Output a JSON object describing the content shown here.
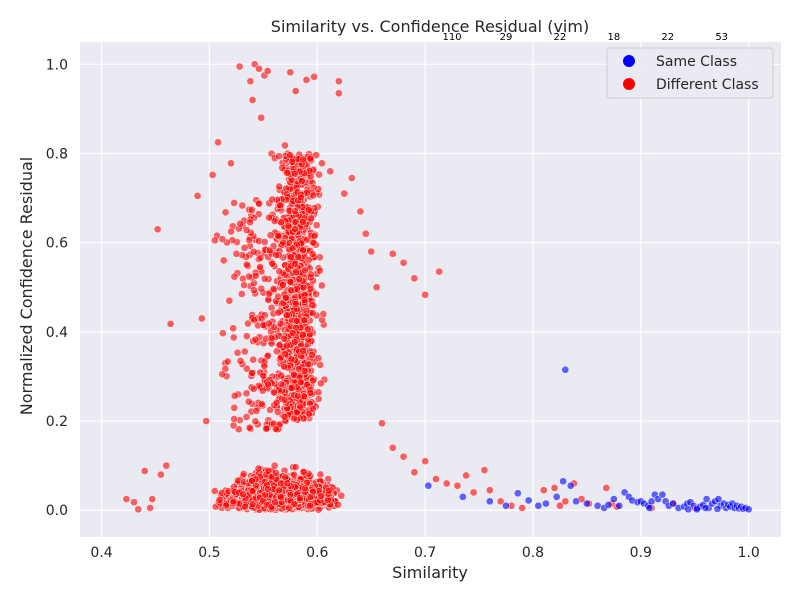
{
  "chart_data": {
    "type": "scatter",
    "title": "Similarity vs. Confidence Residual (vim)",
    "xlabel": "Similarity",
    "ylabel": "Normalized Confidence Residual",
    "xlim": [
      0.38,
      1.03
    ],
    "ylim": [
      -0.06,
      1.05
    ],
    "xticks": [
      "0.4",
      "0.5",
      "0.6",
      "0.7",
      "0.8",
      "0.9",
      "1.0"
    ],
    "yticks": [
      "0.0",
      "0.2",
      "0.4",
      "0.6",
      "0.8",
      "1.0"
    ],
    "grid": true,
    "legend_position": "top-right",
    "bin_counts": [
      {
        "x": 0.725,
        "label": "110"
      },
      {
        "x": 0.775,
        "label": "29"
      },
      {
        "x": 0.825,
        "label": "22"
      },
      {
        "x": 0.875,
        "label": "18"
      },
      {
        "x": 0.925,
        "label": "22"
      },
      {
        "x": 0.975,
        "label": "53"
      }
    ],
    "series": [
      {
        "name": "Same Class",
        "color": "#0000ff",
        "points": [
          [
            0.703,
            0.055
          ],
          [
            0.735,
            0.03
          ],
          [
            0.76,
            0.02
          ],
          [
            0.775,
            0.01
          ],
          [
            0.786,
            0.038
          ],
          [
            0.796,
            0.022
          ],
          [
            0.805,
            0.01
          ],
          [
            0.812,
            0.015
          ],
          [
            0.822,
            0.03
          ],
          [
            0.828,
            0.065
          ],
          [
            0.83,
            0.315
          ],
          [
            0.835,
            0.055
          ],
          [
            0.84,
            0.02
          ],
          [
            0.85,
            0.015
          ],
          [
            0.86,
            0.01
          ],
          [
            0.866,
            0.005
          ],
          [
            0.87,
            0.012
          ],
          [
            0.875,
            0.025
          ],
          [
            0.88,
            0.01
          ],
          [
            0.885,
            0.04
          ],
          [
            0.889,
            0.03
          ],
          [
            0.892,
            0.022
          ],
          [
            0.897,
            0.018
          ],
          [
            0.9,
            0.02
          ],
          [
            0.903,
            0.015
          ],
          [
            0.907,
            0.01
          ],
          [
            0.91,
            0.02
          ],
          [
            0.913,
            0.035
          ],
          [
            0.916,
            0.025
          ],
          [
            0.92,
            0.035
          ],
          [
            0.923,
            0.02
          ],
          [
            0.926,
            0.01
          ],
          [
            0.93,
            0.015
          ],
          [
            0.935,
            0.005
          ],
          [
            0.94,
            0.008
          ],
          [
            0.943,
            0.015
          ],
          [
            0.946,
            0.018
          ],
          [
            0.949,
            0.01
          ],
          [
            0.952,
            0.005
          ],
          [
            0.955,
            0.008
          ],
          [
            0.958,
            0.012
          ],
          [
            0.961,
            0.025
          ],
          [
            0.963,
            0.005
          ],
          [
            0.966,
            0.015
          ],
          [
            0.969,
            0.02
          ],
          [
            0.972,
            0.025
          ],
          [
            0.974,
            0.01
          ],
          [
            0.977,
            0.015
          ],
          [
            0.979,
            0.005
          ],
          [
            0.981,
            0.012
          ],
          [
            0.983,
            0.008
          ],
          [
            0.985,
            0.015
          ],
          [
            0.987,
            0.005
          ],
          [
            0.989,
            0.01
          ],
          [
            0.991,
            0.004
          ],
          [
            0.993,
            0.008
          ],
          [
            0.995,
            0.003
          ],
          [
            0.997,
            0.005
          ],
          [
            1.0,
            0.002
          ],
          [
            0.96,
            0.005
          ],
          [
            0.944,
            0.002
          ],
          [
            0.971,
            0.003
          ],
          [
            0.952,
            0.002
          ],
          [
            0.908,
            0.005
          ]
        ]
      },
      {
        "name": "Different Class",
        "color": "#ff0000",
        "points": [
          [
            0.423,
            0.025
          ],
          [
            0.43,
            0.018
          ],
          [
            0.434,
            0.002
          ],
          [
            0.44,
            0.088
          ],
          [
            0.445,
            0.005
          ],
          [
            0.447,
            0.025
          ],
          [
            0.452,
            0.63
          ],
          [
            0.455,
            0.08
          ],
          [
            0.46,
            0.1
          ],
          [
            0.464,
            0.418
          ],
          [
            0.489,
            0.705
          ],
          [
            0.493,
            0.43
          ],
          [
            0.497,
            0.2
          ],
          [
            0.503,
            0.752
          ],
          [
            0.505,
            0.605
          ],
          [
            0.508,
            0.825
          ],
          [
            0.512,
            0.305
          ],
          [
            0.515,
            0.668
          ],
          [
            0.52,
            0.778
          ],
          [
            0.522,
            0.408
          ],
          [
            0.525,
            0.575
          ],
          [
            0.528,
            0.995
          ],
          [
            0.53,
            0.485
          ],
          [
            0.538,
            0.962
          ],
          [
            0.54,
            0.92
          ],
          [
            0.542,
            1.0
          ],
          [
            0.546,
            0.99
          ],
          [
            0.548,
            0.88
          ],
          [
            0.551,
            0.975
          ],
          [
            0.554,
            0.985
          ],
          [
            0.57,
            0.818
          ],
          [
            0.575,
            0.982
          ],
          [
            0.58,
            0.94
          ],
          [
            0.59,
            0.965
          ],
          [
            0.597,
            0.972
          ],
          [
            0.62,
            0.962
          ],
          [
            0.62,
            0.935
          ],
          [
            0.612,
            0.76
          ],
          [
            0.625,
            0.71
          ],
          [
            0.632,
            0.745
          ],
          [
            0.64,
            0.67
          ],
          [
            0.645,
            0.62
          ],
          [
            0.65,
            0.58
          ],
          [
            0.655,
            0.5
          ],
          [
            0.67,
            0.575
          ],
          [
            0.68,
            0.555
          ],
          [
            0.69,
            0.52
          ],
          [
            0.7,
            0.483
          ],
          [
            0.713,
            0.535
          ],
          [
            0.66,
            0.195
          ],
          [
            0.67,
            0.14
          ],
          [
            0.68,
            0.12
          ],
          [
            0.69,
            0.085
          ],
          [
            0.7,
            0.11
          ],
          [
            0.71,
            0.07
          ],
          [
            0.72,
            0.06
          ],
          [
            0.73,
            0.055
          ],
          [
            0.738,
            0.078
          ],
          [
            0.745,
            0.04
          ],
          [
            0.755,
            0.09
          ],
          [
            0.76,
            0.045
          ],
          [
            0.77,
            0.02
          ],
          [
            0.78,
            0.01
          ],
          [
            0.79,
            0.005
          ],
          [
            0.81,
            0.045
          ],
          [
            0.82,
            0.05
          ],
          [
            0.825,
            0.01
          ],
          [
            0.83,
            0.02
          ],
          [
            0.838,
            0.06
          ],
          [
            0.845,
            0.025
          ],
          [
            0.852,
            0.015
          ],
          [
            0.868,
            0.05
          ],
          [
            0.873,
            0.015
          ],
          [
            0.878,
            0.008
          ],
          [
            0.91,
            0.005
          ],
          [
            0.93,
            0.015
          ],
          [
            0.95,
            0.005
          ]
        ]
      }
    ]
  },
  "legend": {
    "same_label": "Same Class",
    "different_label": "Different Class"
  }
}
